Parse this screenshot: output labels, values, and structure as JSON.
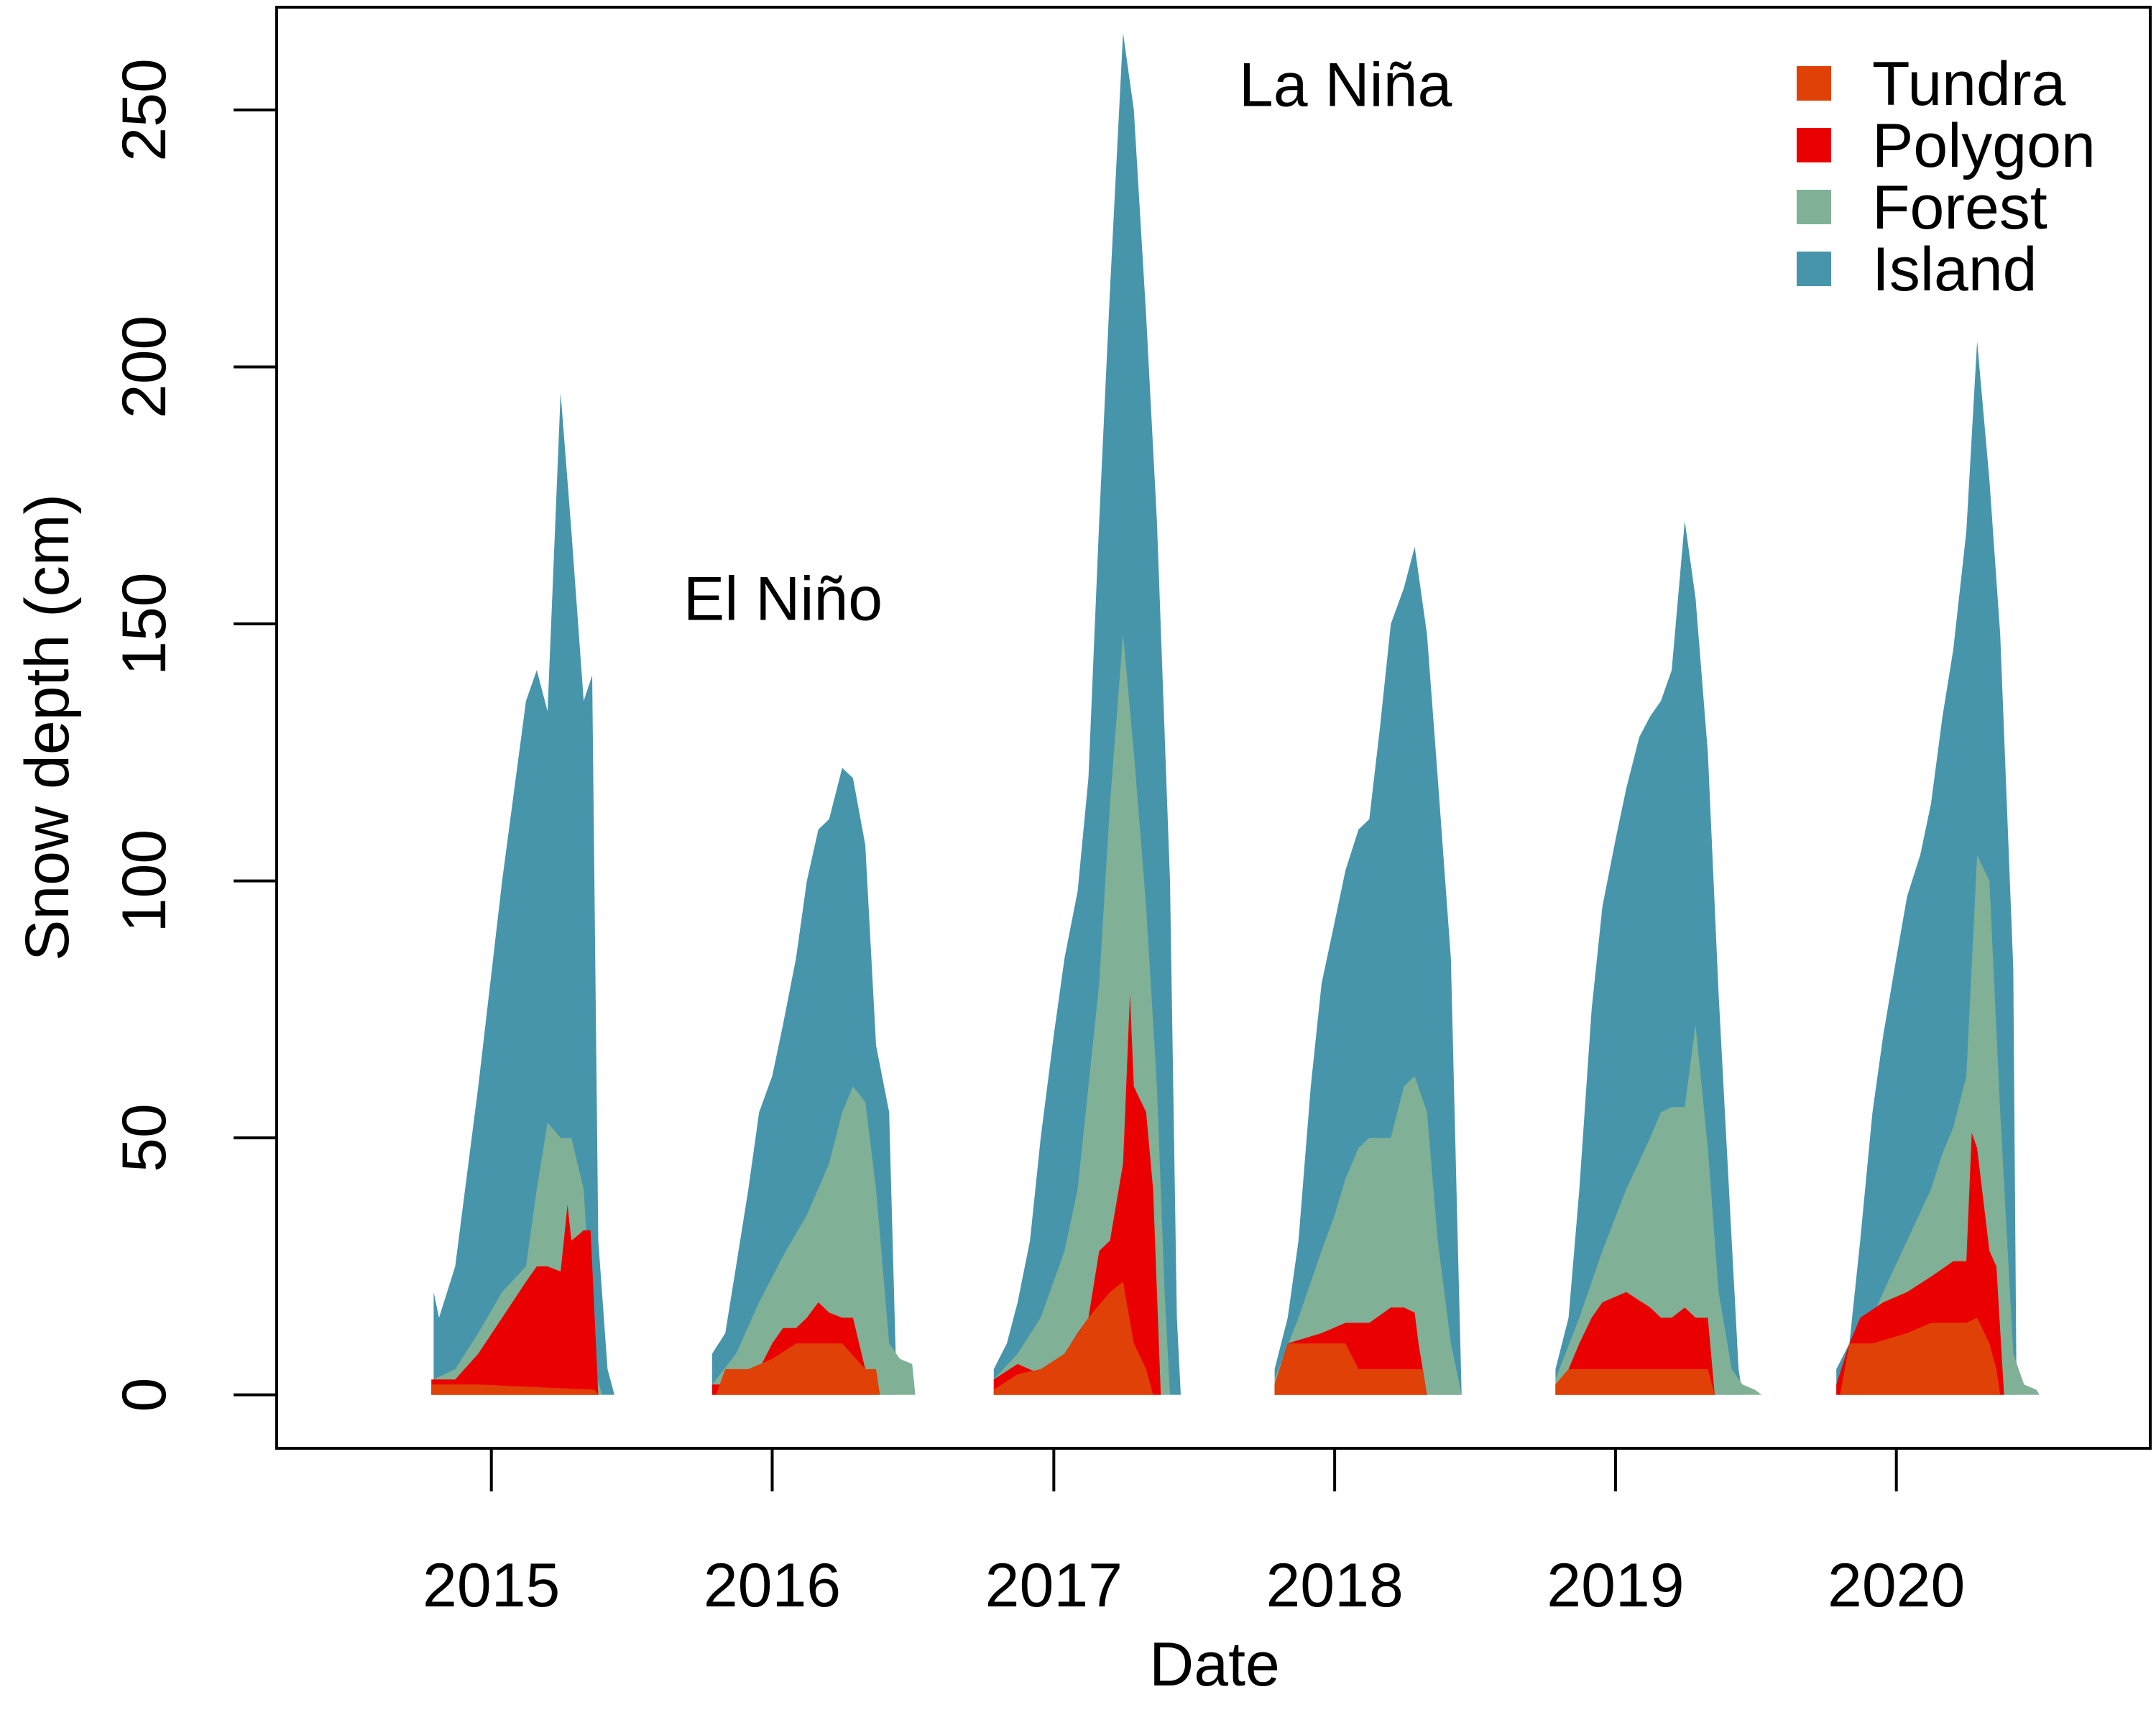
{
  "chart_data": {
    "type": "area",
    "xlabel": "Date",
    "ylabel": "Snow depth (cm)",
    "xlim": [
      "2014-03-28",
      "2020-11-26"
    ],
    "ylim": [
      -10.4,
      270
    ],
    "x_ticks": [
      "2015-01-01",
      "2016-01-01",
      "2017-01-01",
      "2018-01-01",
      "2019-01-01",
      "2020-01-01"
    ],
    "x_tick_labels": [
      "2015",
      "2016",
      "2017",
      "2018",
      "2019",
      "2020"
    ],
    "y_ticks": [
      0,
      50,
      100,
      150,
      200,
      250
    ],
    "y_tick_labels": [
      "0",
      "50",
      "100",
      "150",
      "200",
      "250"
    ],
    "grid": false,
    "legend_position": "top-right",
    "annotations": [
      {
        "text": "El Niño",
        "x": "2016-01-15",
        "y": 155
      },
      {
        "text": "La Niña",
        "x": "2018-01-15",
        "y": 255
      }
    ],
    "series": [
      {
        "name": "Island",
        "color": "#4795ab",
        "seasons": [
          {
            "x": [
              "2014-10-18",
              "2014-10-25",
              "2014-11-15",
              "2014-12-15",
              "2015-01-15",
              "2015-02-15",
              "2015-03-01",
              "2015-03-15",
              "2015-04-01",
              "2015-04-15",
              "2015-05-01",
              "2015-05-12",
              "2015-05-20",
              "2015-06-01",
              "2015-06-10"
            ],
            "y": [
              20,
              15,
              25,
              60,
              100,
              135,
              141,
              133,
              195,
              168,
              135,
              140,
              30,
              5,
              0
            ]
          },
          {
            "x": [
              "2015-10-15",
              "2015-11-01",
              "2015-11-15",
              "2015-12-01",
              "2015-12-15",
              "2016-01-01",
              "2016-01-15",
              "2016-02-01",
              "2016-02-15",
              "2016-03-01",
              "2016-03-15",
              "2016-04-01",
              "2016-04-15",
              "2016-05-01",
              "2016-05-15",
              "2016-06-01",
              "2016-06-10"
            ],
            "y": [
              8,
              12,
              25,
              40,
              55,
              62,
              72,
              85,
              100,
              110,
              112,
              122,
              120,
              107,
              68,
              55,
              5
            ]
          },
          {
            "x": [
              "2016-10-15",
              "2016-11-01",
              "2016-11-15",
              "2016-12-01",
              "2016-12-15",
              "2017-01-01",
              "2017-01-15",
              "2017-02-01",
              "2017-02-15",
              "2017-03-01",
              "2017-03-15",
              "2017-04-01",
              "2017-04-15",
              "2017-05-01",
              "2017-05-15",
              "2017-06-01",
              "2017-06-10",
              "2017-06-15"
            ],
            "y": [
              5,
              10,
              18,
              30,
              50,
              70,
              85,
              98,
              120,
              170,
              215,
              265,
              250,
              210,
              170,
              100,
              15,
              0
            ]
          },
          {
            "x": [
              "2017-10-15",
              "2017-11-01",
              "2017-11-15",
              "2017-12-01",
              "2017-12-15",
              "2018-01-01",
              "2018-01-15",
              "2018-02-01",
              "2018-02-15",
              "2018-03-01",
              "2018-03-15",
              "2018-04-01",
              "2018-04-15",
              "2018-05-01",
              "2018-05-15",
              "2018-06-01",
              "2018-06-10",
              "2018-06-15"
            ],
            "y": [
              5,
              15,
              30,
              60,
              80,
              92,
              102,
              110,
              112,
              130,
              150,
              157,
              165,
              148,
              120,
              85,
              30,
              0
            ]
          },
          {
            "x": [
              "2018-10-15",
              "2018-11-01",
              "2018-11-15",
              "2018-12-01",
              "2018-12-15",
              "2019-01-01",
              "2019-01-15",
              "2019-02-01",
              "2019-02-15",
              "2019-03-01",
              "2019-03-15",
              "2019-04-01",
              "2019-04-15",
              "2019-05-01",
              "2019-05-15",
              "2019-06-01",
              "2019-06-10",
              "2019-06-15"
            ],
            "y": [
              5,
              15,
              40,
              75,
              95,
              108,
              118,
              128,
              132,
              135,
              141,
              170,
              155,
              125,
              78,
              30,
              5,
              0
            ]
          },
          {
            "x": [
              "2019-10-15",
              "2019-11-01",
              "2019-11-15",
              "2019-12-01",
              "2019-12-15",
              "2020-01-01",
              "2020-01-15",
              "2020-02-01",
              "2020-02-15",
              "2020-03-01",
              "2020-03-15",
              "2020-04-01",
              "2020-04-15",
              "2020-05-01",
              "2020-05-15",
              "2020-06-01",
              "2020-06-05",
              "2020-06-10"
            ],
            "y": [
              5,
              10,
              30,
              55,
              70,
              85,
              97,
              105,
              115,
              132,
              145,
              168,
              205,
              178,
              148,
              83,
              5,
              0
            ]
          }
        ]
      },
      {
        "name": "Forest",
        "color": "#80b196",
        "seasons": [
          {
            "x": [
              "2014-10-18",
              "2014-11-15",
              "2014-12-15",
              "2015-01-15",
              "2015-02-15",
              "2015-03-01",
              "2015-03-15",
              "2015-04-01",
              "2015-04-15",
              "2015-05-01",
              "2015-05-15",
              "2015-05-25"
            ],
            "y": [
              3,
              5,
              12,
              20,
              25,
              40,
              53,
              50,
              50,
              40,
              5,
              0
            ]
          },
          {
            "x": [
              "2015-10-15",
              "2015-11-15",
              "2015-12-15",
              "2016-01-15",
              "2016-02-15",
              "2016-03-15",
              "2016-04-01",
              "2016-04-15",
              "2016-05-01",
              "2016-05-15",
              "2016-06-01",
              "2016-06-15",
              "2016-07-01",
              "2016-07-05"
            ],
            "y": [
              2,
              8,
              18,
              27,
              35,
              45,
              55,
              60,
              57,
              40,
              10,
              7,
              6,
              0
            ]
          },
          {
            "x": [
              "2016-10-15",
              "2016-11-15",
              "2016-12-15",
              "2017-01-15",
              "2017-02-01",
              "2017-02-15",
              "2017-03-01",
              "2017-03-15",
              "2017-04-01",
              "2017-04-15",
              "2017-05-01",
              "2017-05-15",
              "2017-05-25",
              "2017-06-01"
            ],
            "y": [
              3,
              8,
              15,
              28,
              40,
              60,
              80,
              115,
              148,
              125,
              95,
              60,
              20,
              0
            ]
          },
          {
            "x": [
              "2017-10-15",
              "2017-11-15",
              "2017-12-15",
              "2018-01-01",
              "2018-01-15",
              "2018-02-01",
              "2018-02-15",
              "2018-03-01",
              "2018-03-15",
              "2018-04-01",
              "2018-04-15",
              "2018-05-01",
              "2018-05-15",
              "2018-06-01",
              "2018-06-15"
            ],
            "y": [
              3,
              15,
              28,
              35,
              42,
              48,
              50,
              50,
              50,
              60,
              62,
              55,
              30,
              10,
              0
            ]
          },
          {
            "x": [
              "2018-10-15",
              "2018-11-15",
              "2018-12-15",
              "2019-01-15",
              "2019-02-15",
              "2019-03-01",
              "2019-03-15",
              "2019-04-01",
              "2019-04-15",
              "2019-05-01",
              "2019-05-15",
              "2019-06-01",
              "2019-06-15",
              "2019-07-01",
              "2019-07-10"
            ],
            "y": [
              3,
              15,
              28,
              40,
              50,
              55,
              56,
              56,
              72,
              48,
              20,
              5,
              2,
              1,
              0
            ]
          },
          {
            "x": [
              "2019-10-15",
              "2019-11-15",
              "2019-12-15",
              "2020-01-15",
              "2020-02-15",
              "2020-03-01",
              "2020-03-15",
              "2020-04-01",
              "2020-04-15",
              "2020-05-01",
              "2020-05-15",
              "2020-06-01",
              "2020-06-15",
              "2020-07-01",
              "2020-07-05"
            ],
            "y": [
              2,
              10,
              20,
              30,
              40,
              47,
              52,
              62,
              105,
              100,
              55,
              8,
              2,
              1,
              0
            ]
          }
        ]
      },
      {
        "name": "Polygon",
        "color": "#ea0000",
        "seasons": [
          {
            "x": [
              "2014-10-15",
              "2014-11-15",
              "2014-12-15",
              "2015-01-15",
              "2015-02-15",
              "2015-03-01",
              "2015-03-15",
              "2015-04-01",
              "2015-04-10",
              "2015-04-15",
              "2015-05-01",
              "2015-05-10",
              "2015-05-20"
            ],
            "y": [
              3,
              3,
              8,
              15,
              22,
              25,
              25,
              24,
              37,
              30,
              32,
              32,
              0
            ]
          },
          {
            "x": [
              "2015-10-15",
              "2015-11-15",
              "2015-12-15",
              "2016-01-01",
              "2016-01-15",
              "2016-02-01",
              "2016-02-15",
              "2016-03-01",
              "2016-03-15",
              "2016-04-01",
              "2016-04-15",
              "2016-05-01",
              "2016-05-10"
            ],
            "y": [
              2,
              2,
              5,
              10,
              13,
              13,
              15,
              18,
              16,
              15,
              15,
              5,
              0
            ]
          },
          {
            "x": [
              "2016-10-15",
              "2016-11-15",
              "2016-12-15",
              "2017-01-15",
              "2017-02-01",
              "2017-02-15",
              "2017-03-01",
              "2017-03-15",
              "2017-04-01",
              "2017-04-10",
              "2017-04-15",
              "2017-05-01",
              "2017-05-10",
              "2017-05-20"
            ],
            "y": [
              3,
              6,
              4,
              8,
              12,
              15,
              28,
              30,
              45,
              78,
              60,
              55,
              40,
              0
            ]
          },
          {
            "x": [
              "2017-10-15",
              "2017-11-01",
              "2017-12-15",
              "2018-01-15",
              "2018-02-15",
              "2018-03-15",
              "2018-04-01",
              "2018-04-15",
              "2018-04-20",
              "2018-05-01"
            ],
            "y": [
              2,
              10,
              12,
              14,
              14,
              17,
              17,
              16,
              10,
              0
            ]
          },
          {
            "x": [
              "2018-10-15",
              "2018-11-01",
              "2018-11-15",
              "2018-12-01",
              "2018-12-15",
              "2019-01-15",
              "2019-02-15",
              "2019-03-01",
              "2019-03-15",
              "2019-04-01",
              "2019-04-15",
              "2019-05-01",
              "2019-05-10"
            ],
            "y": [
              2,
              5,
              10,
              15,
              18,
              20,
              17,
              15,
              15,
              17,
              15,
              15,
              0
            ]
          },
          {
            "x": [
              "2019-10-15",
              "2019-11-01",
              "2019-11-15",
              "2019-12-15",
              "2020-01-15",
              "2020-02-15",
              "2020-03-15",
              "2020-04-01",
              "2020-04-08",
              "2020-04-15",
              "2020-05-01",
              "2020-05-10",
              "2020-05-20"
            ],
            "y": [
              2,
              10,
              15,
              18,
              20,
              23,
              26,
              26,
              51,
              48,
              28,
              25,
              0
            ]
          }
        ]
      },
      {
        "name": "Tundra",
        "color": "#e04107",
        "seasons": [
          {
            "x": [
              "2014-10-15",
              "2014-12-15",
              "2015-05-15",
              "2015-05-20"
            ],
            "y": [
              2,
              2,
              1,
              0
            ]
          },
          {
            "x": [
              "2015-10-20",
              "2015-11-01",
              "2015-12-01",
              "2016-01-01",
              "2016-02-01",
              "2016-03-01",
              "2016-04-01",
              "2016-05-01",
              "2016-05-15",
              "2016-05-20"
            ],
            "y": [
              0,
              5,
              5,
              7,
              10,
              10,
              10,
              5,
              5,
              0
            ]
          },
          {
            "x": [
              "2016-10-15",
              "2016-11-15",
              "2016-12-15",
              "2017-01-15",
              "2017-02-15",
              "2017-03-15",
              "2017-04-01",
              "2017-04-15",
              "2017-05-01",
              "2017-05-10"
            ],
            "y": [
              1,
              4,
              5,
              8,
              15,
              20,
              22,
              10,
              5,
              0
            ]
          },
          {
            "x": [
              "2017-10-15",
              "2017-11-01",
              "2017-12-01",
              "2018-01-15",
              "2018-02-01",
              "2018-02-15",
              "2018-03-15",
              "2018-04-15",
              "2018-04-25",
              "2018-05-01"
            ],
            "y": [
              2,
              10,
              10,
              10,
              5,
              5,
              5,
              5,
              5,
              0
            ]
          },
          {
            "x": [
              "2018-10-15",
              "2018-11-01",
              "2018-12-01",
              "2019-01-15",
              "2019-02-15",
              "2019-03-15",
              "2019-04-15",
              "2019-05-01",
              "2019-05-10"
            ],
            "y": [
              2,
              5,
              5,
              5,
              5,
              5,
              5,
              5,
              0
            ]
          },
          {
            "x": [
              "2019-10-20",
              "2019-11-01",
              "2019-12-01",
              "2020-01-15",
              "2020-02-15",
              "2020-03-15",
              "2020-04-01",
              "2020-04-15",
              "2020-05-01",
              "2020-05-10",
              "2020-05-15"
            ],
            "y": [
              0,
              10,
              10,
              12,
              14,
              14,
              14,
              15,
              10,
              5,
              0
            ]
          }
        ]
      }
    ]
  }
}
